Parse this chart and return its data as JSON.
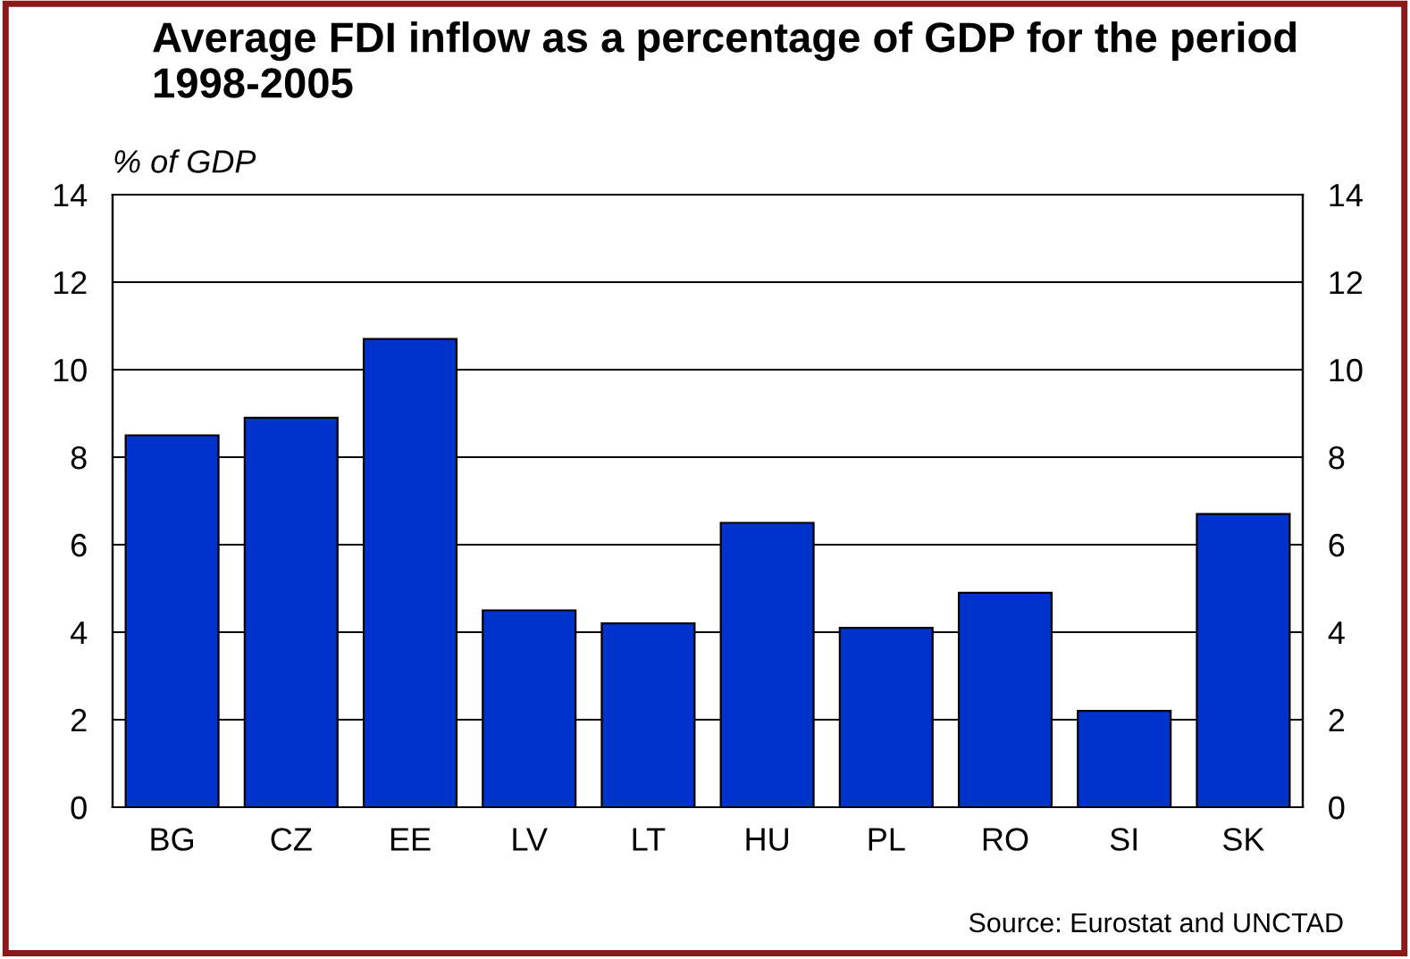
{
  "chart_data": {
    "type": "bar",
    "title": "Average FDI inflow as a percentage of GDP for the period 1998-2005",
    "ylabel": "% of GDP",
    "categories": [
      "BG",
      "CZ",
      "EE",
      "LV",
      "LT",
      "HU",
      "PL",
      "RO",
      "SI",
      "SK"
    ],
    "values": [
      8.5,
      8.9,
      10.7,
      4.5,
      4.2,
      6.5,
      4.1,
      4.9,
      2.2,
      6.7
    ],
    "color": "#0033cc",
    "ylim": [
      0,
      14
    ],
    "yticks": [
      0,
      2,
      4,
      6,
      8,
      10,
      12,
      14
    ],
    "y2lim": [
      0,
      14
    ],
    "y2ticks": [
      0,
      2,
      4,
      6,
      8,
      10,
      12,
      14
    ],
    "grid": "y",
    "annotations": [
      "Source: Eurostat and UNCTAD"
    ]
  }
}
